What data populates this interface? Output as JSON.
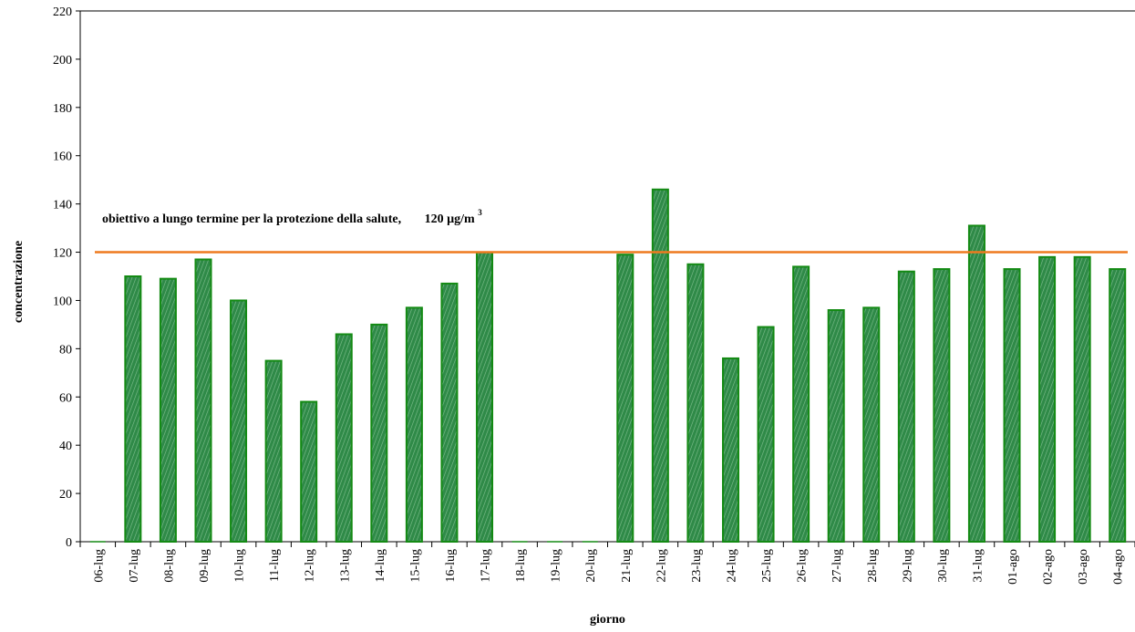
{
  "chart_data": {
    "type": "bar",
    "categories": [
      "06-lug",
      "07-lug",
      "08-lug",
      "09-lug",
      "10-lug",
      "11-lug",
      "12-lug",
      "13-lug",
      "14-lug",
      "15-lug",
      "16-lug",
      "17-lug",
      "18-lug",
      "19-lug",
      "20-lug",
      "21-lug",
      "22-lug",
      "23-lug",
      "24-lug",
      "25-lug",
      "26-lug",
      "27-lug",
      "28-lug",
      "29-lug",
      "30-lug",
      "31-lug",
      "01-ago",
      "02-ago",
      "03-ago",
      "04-ago"
    ],
    "values": [
      0,
      110,
      109,
      117,
      100,
      75,
      58,
      86,
      90,
      97,
      107,
      120,
      0,
      0,
      0,
      119,
      146,
      115,
      76,
      89,
      114,
      96,
      97,
      112,
      113,
      131,
      113,
      118,
      118,
      113
    ],
    "xlabel": "giorno",
    "ylabel": "concentrazione",
    "ylim": [
      0,
      220
    ],
    "yticks": [
      0,
      20,
      40,
      60,
      80,
      100,
      120,
      140,
      160,
      180,
      200,
      220
    ],
    "grid": false,
    "legend": "none",
    "bar_color": "#2f8a48",
    "bar_edge_color": "#138a13",
    "threshold": {
      "value": 120,
      "color": "#ee7a1f",
      "label": "obiettivo a lungo termine per la protezione della salute,",
      "label_value": "120 µg/m",
      "label_sup": "3"
    }
  }
}
